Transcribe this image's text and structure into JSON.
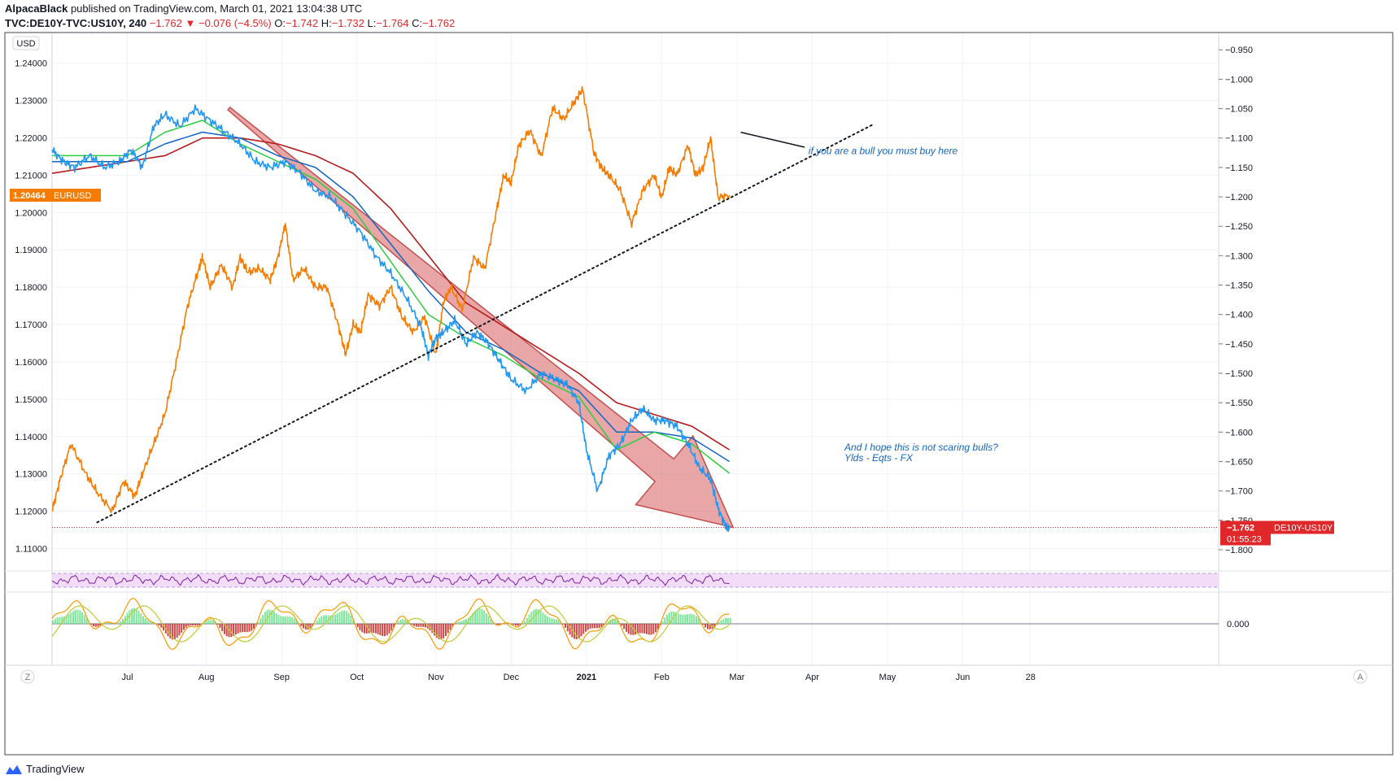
{
  "header": {
    "author": "AlpacaBlack",
    "published": "published on TradingView.com, March 01, 2021 13:04:38 UTC",
    "symbol": "TVC:DE10Y-TVC:US10Y, 240",
    "last": "−1.762",
    "change": "−0.076 (−4.5%)",
    "o_label": "O:",
    "o": "−1.742",
    "h_label": "H:",
    "h": "−1.732",
    "l_label": "L:",
    "l": "−1.764",
    "c_label": "C:",
    "c": "−1.762"
  },
  "footer": {
    "brand": "TradingView"
  },
  "colors": {
    "eurusd": "#f57c00",
    "spread": "#2196f3",
    "ma_fast": "#2ecc40",
    "ma_mid": "#1565c0",
    "ma_slow": "#b71c1c",
    "arrow": "#d86a6a",
    "rsi": "#7b1fa2",
    "rsi_band": "#f3dcf7",
    "label_orange": "#f57c00",
    "label_red": "#e0272a"
  },
  "chart_data": {
    "type": "line",
    "title": "TVC:DE10Y-TVC:US10Y, 240",
    "left_axis": {
      "unit": "USD",
      "ylim": [
        1.104,
        1.248
      ],
      "ticks": [
        "1.24000",
        "1.23000",
        "1.22000",
        "1.21000",
        "1.20000",
        "1.19000",
        "1.18000",
        "1.17000",
        "1.16000",
        "1.15000",
        "1.14000",
        "1.13000",
        "1.12000",
        "1.11000"
      ],
      "tick_values": [
        1.24,
        1.23,
        1.22,
        1.21,
        1.2,
        1.19,
        1.18,
        1.17,
        1.16,
        1.15,
        1.14,
        1.13,
        1.12,
        1.11
      ]
    },
    "right_axis": {
      "ylim": [
        -1.836,
        -0.922
      ],
      "ticks": [
        "−0.950",
        "−1.000",
        "−1.050",
        "−1.100",
        "−1.150",
        "−1.200",
        "−1.250",
        "−1.300",
        "−1.350",
        "−1.400",
        "−1.450",
        "−1.500",
        "−1.550",
        "−1.600",
        "−1.650",
        "−1.700",
        "−1.750",
        "−1.800"
      ],
      "tick_values": [
        -0.95,
        -1.0,
        -1.05,
        -1.1,
        -1.15,
        -1.2,
        -1.25,
        -1.3,
        -1.35,
        -1.4,
        -1.45,
        -1.5,
        -1.55,
        -1.6,
        -1.65,
        -1.7,
        -1.75,
        -1.8
      ]
    },
    "x_axis": {
      "xlim": [
        0,
        15.5
      ],
      "ticks": [
        "Jul",
        "Aug",
        "Sep",
        "Oct",
        "Nov",
        "Dec",
        "2021",
        "Feb",
        "Mar",
        "Apr",
        "May",
        "Jun",
        "28"
      ],
      "tick_values": [
        1.0,
        2.05,
        3.05,
        4.05,
        5.1,
        6.1,
        7.1,
        8.1,
        9.1,
        10.1,
        11.1,
        12.1,
        13.0
      ]
    },
    "series": [
      {
        "name": "EURUSD",
        "axis": "left",
        "x": [
          0.0,
          0.1,
          0.25,
          0.45,
          0.6,
          0.8,
          0.95,
          1.1,
          1.2,
          1.35,
          1.5,
          1.65,
          1.8,
          1.95,
          2.0,
          2.1,
          2.25,
          2.4,
          2.5,
          2.6,
          2.75,
          2.9,
          3.0,
          3.1,
          3.2,
          3.35,
          3.5,
          3.65,
          3.8,
          3.9,
          4.0,
          4.1,
          4.2,
          4.35,
          4.5,
          4.65,
          4.8,
          4.95,
          5.1,
          5.2,
          5.3,
          5.45,
          5.6,
          5.75,
          5.9,
          6.0,
          6.1,
          6.2,
          6.35,
          6.5,
          6.65,
          6.8,
          6.95,
          7.05,
          7.2,
          7.3,
          7.4,
          7.55,
          7.7,
          7.85,
          8.0,
          8.1,
          8.2,
          8.3,
          8.45,
          8.55,
          8.65,
          8.75,
          8.85,
          9.0
        ],
        "values": [
          1.12,
          1.128,
          1.138,
          1.13,
          1.125,
          1.12,
          1.128,
          1.124,
          1.13,
          1.138,
          1.146,
          1.16,
          1.175,
          1.185,
          1.188,
          1.18,
          1.186,
          1.18,
          1.188,
          1.184,
          1.185,
          1.182,
          1.188,
          1.197,
          1.182,
          1.185,
          1.18,
          1.18,
          1.17,
          1.162,
          1.17,
          1.168,
          1.178,
          1.175,
          1.18,
          1.172,
          1.168,
          1.172,
          1.162,
          1.176,
          1.18,
          1.174,
          1.188,
          1.185,
          1.2,
          1.21,
          1.208,
          1.218,
          1.222,
          1.215,
          1.228,
          1.225,
          1.23,
          1.233,
          1.216,
          1.212,
          1.21,
          1.206,
          1.197,
          1.206,
          1.21,
          1.204,
          1.212,
          1.21,
          1.218,
          1.21,
          1.212,
          1.22,
          1.204,
          1.20464
        ]
      },
      {
        "name": "DE10Y-US10Y",
        "axis": "right",
        "x": [
          0.0,
          0.15,
          0.3,
          0.5,
          0.7,
          0.9,
          1.05,
          1.2,
          1.35,
          1.5,
          1.7,
          1.9,
          2.1,
          2.3,
          2.5,
          2.7,
          2.9,
          3.1,
          3.3,
          3.5,
          3.7,
          3.9,
          4.1,
          4.3,
          4.5,
          4.7,
          4.9,
          5.0,
          5.1,
          5.2,
          5.35,
          5.5,
          5.65,
          5.8,
          5.95,
          6.1,
          6.3,
          6.5,
          6.7,
          6.85,
          7.0,
          7.1,
          7.25,
          7.4,
          7.55,
          7.7,
          7.85,
          8.0,
          8.15,
          8.3,
          8.45,
          8.6,
          8.75,
          8.85,
          8.95,
          9.0
        ],
        "values": [
          -1.12,
          -1.14,
          -1.15,
          -1.13,
          -1.15,
          -1.14,
          -1.12,
          -1.15,
          -1.08,
          -1.06,
          -1.08,
          -1.05,
          -1.07,
          -1.09,
          -1.11,
          -1.14,
          -1.15,
          -1.14,
          -1.16,
          -1.19,
          -1.2,
          -1.23,
          -1.26,
          -1.3,
          -1.33,
          -1.37,
          -1.42,
          -1.47,
          -1.44,
          -1.43,
          -1.41,
          -1.45,
          -1.43,
          -1.45,
          -1.48,
          -1.51,
          -1.53,
          -1.5,
          -1.51,
          -1.52,
          -1.55,
          -1.63,
          -1.7,
          -1.64,
          -1.62,
          -1.58,
          -1.56,
          -1.58,
          -1.58,
          -1.59,
          -1.62,
          -1.66,
          -1.68,
          -1.73,
          -1.76,
          -1.762
        ]
      },
      {
        "name": "MA fast",
        "axis": "right",
        "x": [
          0.0,
          0.5,
          1.0,
          1.5,
          2.0,
          2.5,
          3.0,
          3.5,
          4.0,
          4.5,
          5.0,
          5.5,
          6.0,
          6.5,
          7.0,
          7.5,
          8.0,
          8.5,
          9.0
        ],
        "values": [
          -1.13,
          -1.13,
          -1.13,
          -1.09,
          -1.07,
          -1.11,
          -1.14,
          -1.17,
          -1.22,
          -1.31,
          -1.4,
          -1.44,
          -1.47,
          -1.51,
          -1.54,
          -1.63,
          -1.6,
          -1.62,
          -1.67
        ]
      },
      {
        "name": "MA mid",
        "axis": "right",
        "x": [
          0.0,
          0.5,
          1.0,
          1.5,
          2.0,
          2.5,
          3.0,
          3.5,
          4.0,
          4.5,
          5.0,
          5.5,
          6.0,
          6.5,
          7.0,
          7.5,
          8.0,
          8.5,
          9.0
        ],
        "values": [
          -1.14,
          -1.14,
          -1.14,
          -1.11,
          -1.09,
          -1.1,
          -1.13,
          -1.15,
          -1.2,
          -1.28,
          -1.36,
          -1.43,
          -1.46,
          -1.5,
          -1.53,
          -1.6,
          -1.6,
          -1.61,
          -1.65
        ]
      },
      {
        "name": "MA slow",
        "axis": "right",
        "x": [
          0.0,
          0.5,
          1.0,
          1.5,
          2.0,
          2.5,
          3.0,
          3.5,
          4.0,
          4.5,
          5.0,
          5.5,
          6.0,
          6.5,
          7.0,
          7.5,
          8.0,
          8.5,
          9.0
        ],
        "values": [
          -1.16,
          -1.15,
          -1.14,
          -1.13,
          -1.1,
          -1.1,
          -1.11,
          -1.13,
          -1.16,
          -1.22,
          -1.3,
          -1.38,
          -1.42,
          -1.46,
          -1.5,
          -1.55,
          -1.57,
          -1.59,
          -1.63
        ]
      }
    ],
    "trendline": {
      "style": "dotted",
      "x": [
        0.6,
        10.9
      ],
      "values_left": [
        1.117,
        1.2235
      ]
    },
    "horizontal_line": {
      "style": "dotted",
      "value_right": -1.762
    },
    "big_arrow": {
      "from_x": 2.35,
      "from_right": -1.05,
      "to_x": 9.05,
      "to_right": -1.762
    },
    "last_price_labels": {
      "eurusd": {
        "text": "1.20464",
        "tag": "EURUSD"
      },
      "spread": {
        "tag": "DE10Y-US10Y",
        "value": "−1.762",
        "countdown": "01:55:23"
      }
    },
    "annotations": [
      {
        "text": "if you are a bull you must buy here"
      },
      {
        "line1": "And I hope this is not scaring bulls?",
        "line2": "Ylds - Eqts - FX"
      }
    ],
    "sub_panes": {
      "rsi": {
        "band": [
          30,
          70
        ]
      },
      "oscillator": {
        "zero_label": "0.000"
      }
    },
    "corner_labels": {
      "left": "Z",
      "right": "A"
    }
  }
}
